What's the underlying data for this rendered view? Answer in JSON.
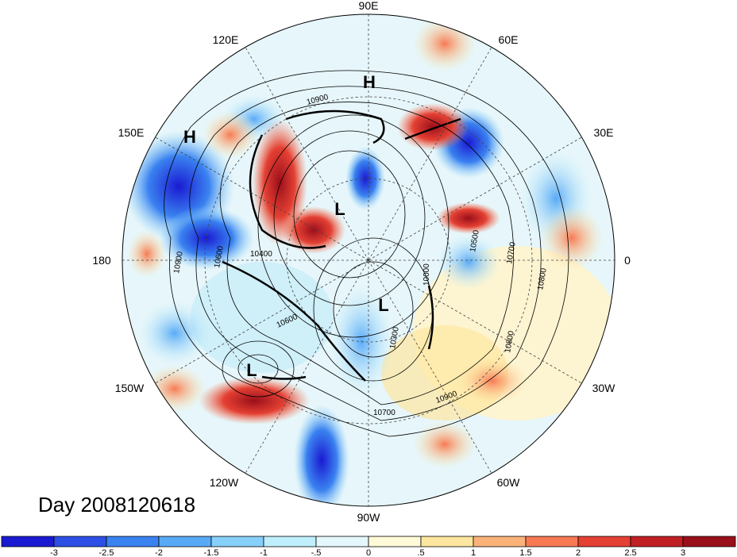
{
  "title": "Day 2008120618",
  "longitude_labels": [
    {
      "key": "90E",
      "text": "90E"
    },
    {
      "key": "120E",
      "text": "120E"
    },
    {
      "key": "60E",
      "text": "60E"
    },
    {
      "key": "150E",
      "text": "150E"
    },
    {
      "key": "30E",
      "text": "30E"
    },
    {
      "key": "180",
      "text": "180"
    },
    {
      "key": "0",
      "text": "0"
    },
    {
      "key": "150W",
      "text": "150W"
    },
    {
      "key": "30W",
      "text": "30W"
    },
    {
      "key": "120W",
      "text": "120W"
    },
    {
      "key": "60W",
      "text": "60W"
    },
    {
      "key": "90W",
      "text": "90W"
    }
  ],
  "pressure_centers": [
    {
      "key": "H-asia",
      "text": "H"
    },
    {
      "key": "H-pacific",
      "text": "H"
    },
    {
      "key": "L-arctic",
      "text": "L"
    },
    {
      "key": "L-canada",
      "text": "L"
    },
    {
      "key": "L-gulf-alaska",
      "text": "L"
    }
  ],
  "contour_labels": [
    "10900",
    "10900",
    "10400",
    "10600",
    "10600",
    "10500",
    "10700",
    "10800",
    "10800",
    "10900",
    "10700",
    "10000",
    "10300"
  ],
  "colorbar": {
    "ticks": [
      "-3",
      "-2.5",
      "-2",
      "-1.5",
      "-1",
      "-.5",
      "0",
      ".5",
      "1",
      "1.5",
      "2",
      "2.5",
      "3"
    ],
    "colors": [
      "#1a1ad2",
      "#2d4fe6",
      "#3a82f0",
      "#59aaf6",
      "#87d0fa",
      "#bfeefc",
      "#e4f8fc",
      "#fffbd8",
      "#fde7a0",
      "#fbb37a",
      "#f77a55",
      "#e44033",
      "#c01f24",
      "#9a0f1a"
    ]
  }
}
